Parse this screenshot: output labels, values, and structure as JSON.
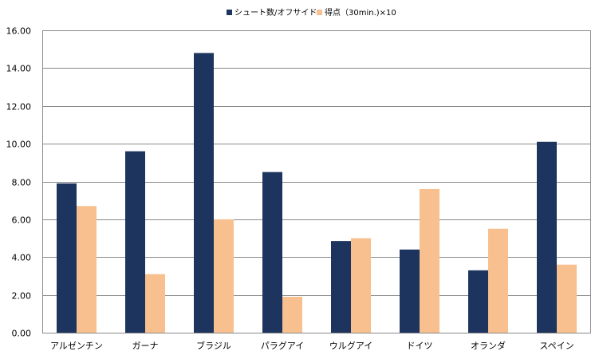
{
  "chart_data": {
    "type": "bar",
    "categories": [
      "アルゼンチン",
      "ガーナ",
      "ブラジル",
      "パラグアイ",
      "ウルグアイ",
      "ドイツ",
      "オランダ",
      "スペイン"
    ],
    "series": [
      {
        "name": "シュート数/オフサイド",
        "color": "#1d355e",
        "values": [
          7.9,
          9.6,
          14.8,
          8.5,
          4.85,
          4.4,
          3.3,
          10.1
        ]
      },
      {
        "name": "得点（30min.)×10",
        "color": "#f8c08e",
        "values": [
          6.7,
          3.1,
          6.0,
          1.9,
          5.0,
          7.6,
          5.5,
          3.6
        ]
      }
    ],
    "yticks": [
      "0.00",
      "2.00",
      "4.00",
      "6.00",
      "8.00",
      "10.00",
      "12.00",
      "14.00",
      "16.00"
    ],
    "ylim": [
      0,
      16
    ],
    "grid": true,
    "legend": "top-center"
  }
}
